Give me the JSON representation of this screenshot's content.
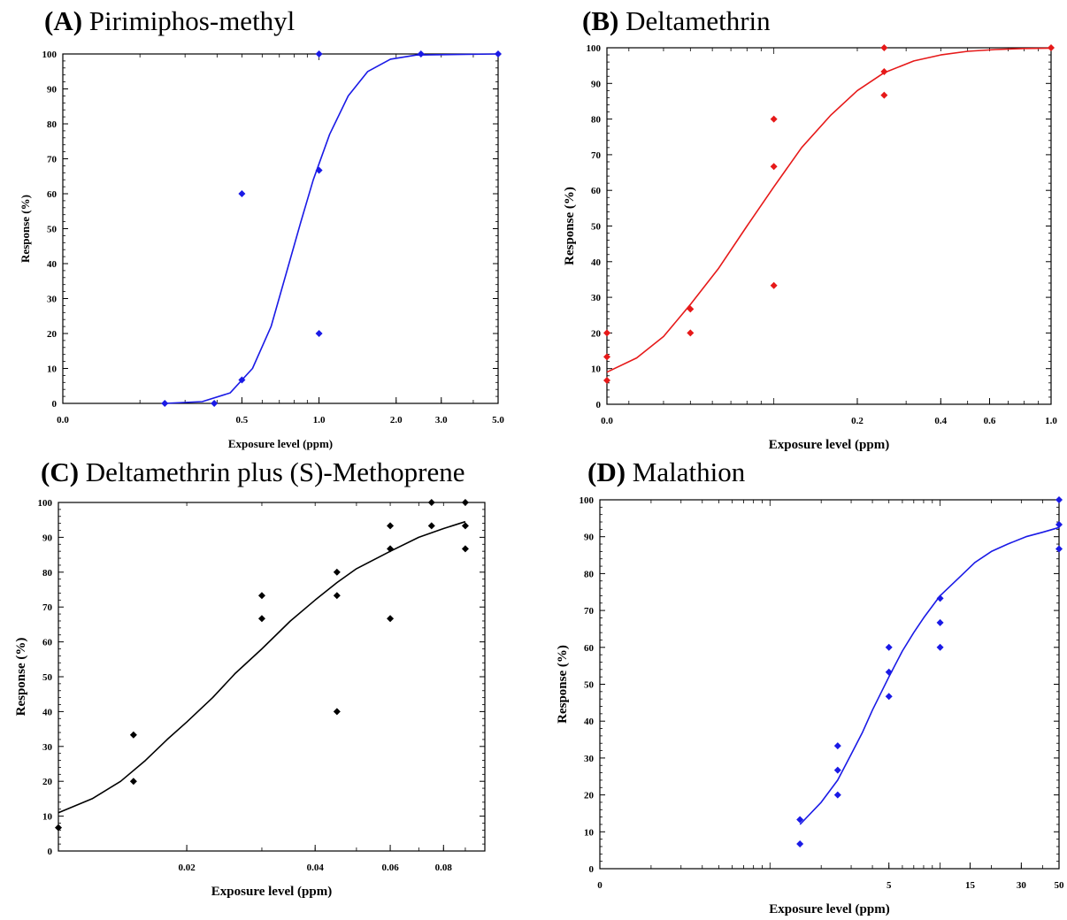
{
  "chart_data": [
    {
      "type": "scatter",
      "panel_letter": "(A)",
      "title": "Pirimiphos-methyl",
      "xlabel": "Exposure level (ppm)",
      "ylabel": "Response (%)",
      "x_scale": "log",
      "xlim": [
        0.1,
        5.0
      ],
      "ylim": [
        0,
        100
      ],
      "y_ticks": [
        0,
        10,
        20,
        30,
        40,
        50,
        60,
        70,
        80,
        90,
        100
      ],
      "x_tick_labels": [
        {
          "value": 0.1,
          "label": "0.0"
        },
        {
          "value": 0.5,
          "label": "0.5"
        },
        {
          "value": 1.0,
          "label": "1.0"
        },
        {
          "value": 2.0,
          "label": "2.0"
        },
        {
          "value": 3.0,
          "label": "3.0"
        },
        {
          "value": 5.0,
          "label": "5.0"
        }
      ],
      "color": "#1a1ae6",
      "points": [
        {
          "x": 0.25,
          "y": 0
        },
        {
          "x": 0.39,
          "y": 0
        },
        {
          "x": 0.5,
          "y": 60
        },
        {
          "x": 0.5,
          "y": 6.7
        },
        {
          "x": 1.0,
          "y": 100
        },
        {
          "x": 1.0,
          "y": 66.7
        },
        {
          "x": 1.0,
          "y": 20
        },
        {
          "x": 2.5,
          "y": 100
        },
        {
          "x": 5.0,
          "y": 100
        }
      ],
      "fit": [
        {
          "x": 0.25,
          "y": 0
        },
        {
          "x": 0.35,
          "y": 0.5
        },
        {
          "x": 0.45,
          "y": 3
        },
        {
          "x": 0.55,
          "y": 10
        },
        {
          "x": 0.65,
          "y": 22
        },
        {
          "x": 0.75,
          "y": 38
        },
        {
          "x": 0.85,
          "y": 52
        },
        {
          "x": 0.95,
          "y": 64
        },
        {
          "x": 1.1,
          "y": 77
        },
        {
          "x": 1.3,
          "y": 88
        },
        {
          "x": 1.55,
          "y": 95
        },
        {
          "x": 1.9,
          "y": 98.5
        },
        {
          "x": 2.4,
          "y": 99.7
        },
        {
          "x": 5.0,
          "y": 100
        }
      ]
    },
    {
      "type": "scatter",
      "panel_letter": "(B)",
      "title": "Deltamethrin",
      "xlabel": "Exposure level (ppm)",
      "ylabel": "Response (%)",
      "x_scale": "log",
      "xlim": [
        0.025,
        1.0
      ],
      "ylim": [
        0,
        100
      ],
      "y_ticks": [
        0,
        10,
        20,
        30,
        40,
        50,
        60,
        70,
        80,
        90,
        100
      ],
      "x_tick_labels": [
        {
          "value": 0.025,
          "label": "0.0"
        },
        {
          "value": 0.2,
          "label": "0.2"
        },
        {
          "value": 0.4,
          "label": "0.4"
        },
        {
          "value": 0.6,
          "label": "0.6"
        },
        {
          "value": 1.0,
          "label": "1.0"
        }
      ],
      "color": "#e61919",
      "points": [
        {
          "x": 0.025,
          "y": 20
        },
        {
          "x": 0.025,
          "y": 13.3
        },
        {
          "x": 0.025,
          "y": 6.7
        },
        {
          "x": 0.05,
          "y": 26.7
        },
        {
          "x": 0.05,
          "y": 20
        },
        {
          "x": 0.1,
          "y": 80
        },
        {
          "x": 0.1,
          "y": 66.7
        },
        {
          "x": 0.1,
          "y": 33.3
        },
        {
          "x": 0.25,
          "y": 100
        },
        {
          "x": 0.25,
          "y": 93.3
        },
        {
          "x": 0.25,
          "y": 86.7
        },
        {
          "x": 1.0,
          "y": 100
        }
      ],
      "fit": [
        {
          "x": 0.025,
          "y": 9
        },
        {
          "x": 0.032,
          "y": 13
        },
        {
          "x": 0.04,
          "y": 19
        },
        {
          "x": 0.05,
          "y": 28
        },
        {
          "x": 0.063,
          "y": 38
        },
        {
          "x": 0.08,
          "y": 50
        },
        {
          "x": 0.1,
          "y": 61
        },
        {
          "x": 0.126,
          "y": 72
        },
        {
          "x": 0.16,
          "y": 81
        },
        {
          "x": 0.2,
          "y": 88
        },
        {
          "x": 0.25,
          "y": 93
        },
        {
          "x": 0.32,
          "y": 96.3
        },
        {
          "x": 0.4,
          "y": 98
        },
        {
          "x": 0.5,
          "y": 99
        },
        {
          "x": 0.63,
          "y": 99.5
        },
        {
          "x": 0.8,
          "y": 99.8
        },
        {
          "x": 1.0,
          "y": 99.9
        }
      ]
    },
    {
      "type": "scatter",
      "panel_letter": "(C)",
      "title": "Deltamethrin plus (S)-Methoprene",
      "xlabel": "Exposure level (ppm)",
      "ylabel": "Response (%)",
      "x_scale": "log",
      "xlim": [
        0.01,
        0.1
      ],
      "ylim": [
        0,
        100
      ],
      "y_ticks": [
        0,
        10,
        20,
        30,
        40,
        50,
        60,
        70,
        80,
        90,
        100
      ],
      "x_tick_labels": [
        {
          "value": 0.02,
          "label": "0.02"
        },
        {
          "value": 0.04,
          "label": "0.04"
        },
        {
          "value": 0.06,
          "label": "0.06"
        },
        {
          "value": 0.08,
          "label": "0.08"
        }
      ],
      "color": "#000000",
      "points": [
        {
          "x": 0.01,
          "y": 6.7
        },
        {
          "x": 0.015,
          "y": 33.3
        },
        {
          "x": 0.015,
          "y": 20
        },
        {
          "x": 0.03,
          "y": 73.3
        },
        {
          "x": 0.03,
          "y": 66.7
        },
        {
          "x": 0.045,
          "y": 80
        },
        {
          "x": 0.045,
          "y": 73.3
        },
        {
          "x": 0.045,
          "y": 40
        },
        {
          "x": 0.06,
          "y": 93.3
        },
        {
          "x": 0.06,
          "y": 86.7
        },
        {
          "x": 0.06,
          "y": 66.7
        },
        {
          "x": 0.075,
          "y": 100
        },
        {
          "x": 0.075,
          "y": 93.3
        },
        {
          "x": 0.09,
          "y": 100
        },
        {
          "x": 0.09,
          "y": 93.3
        },
        {
          "x": 0.09,
          "y": 86.7
        }
      ],
      "fit": [
        {
          "x": 0.01,
          "y": 11
        },
        {
          "x": 0.012,
          "y": 15
        },
        {
          "x": 0.014,
          "y": 20
        },
        {
          "x": 0.016,
          "y": 26
        },
        {
          "x": 0.018,
          "y": 32
        },
        {
          "x": 0.02,
          "y": 37
        },
        {
          "x": 0.023,
          "y": 44
        },
        {
          "x": 0.026,
          "y": 51
        },
        {
          "x": 0.03,
          "y": 58
        },
        {
          "x": 0.035,
          "y": 66
        },
        {
          "x": 0.04,
          "y": 72
        },
        {
          "x": 0.045,
          "y": 77
        },
        {
          "x": 0.05,
          "y": 81
        },
        {
          "x": 0.06,
          "y": 86
        },
        {
          "x": 0.07,
          "y": 90
        },
        {
          "x": 0.08,
          "y": 92.5
        },
        {
          "x": 0.09,
          "y": 94.5
        }
      ]
    },
    {
      "type": "scatter",
      "panel_letter": "(D)",
      "title": "Malathion",
      "xlabel": "Exposure level (ppm)",
      "ylabel": "Response (%)",
      "x_scale": "log",
      "xlim": [
        0.1,
        50
      ],
      "ylim": [
        0,
        100
      ],
      "y_ticks": [
        0,
        10,
        20,
        30,
        40,
        50,
        60,
        70,
        80,
        90,
        100
      ],
      "x_tick_labels": [
        {
          "value": 0.1,
          "label": "0"
        },
        {
          "value": 5,
          "label": "5"
        },
        {
          "value": 15,
          "label": "15"
        },
        {
          "value": 30,
          "label": "30"
        },
        {
          "value": 50,
          "label": "50"
        }
      ],
      "color": "#1a1ae6",
      "points": [
        {
          "x": 1.5,
          "y": 13.3
        },
        {
          "x": 1.5,
          "y": 6.7
        },
        {
          "x": 2.5,
          "y": 33.3
        },
        {
          "x": 2.5,
          "y": 26.7
        },
        {
          "x": 2.5,
          "y": 20
        },
        {
          "x": 5,
          "y": 60
        },
        {
          "x": 5,
          "y": 53.3
        },
        {
          "x": 5,
          "y": 46.7
        },
        {
          "x": 10,
          "y": 73.3
        },
        {
          "x": 10,
          "y": 66.7
        },
        {
          "x": 10,
          "y": 60
        },
        {
          "x": 50,
          "y": 100
        },
        {
          "x": 50,
          "y": 93.3
        },
        {
          "x": 50,
          "y": 86.7
        }
      ],
      "fit": [
        {
          "x": 1.5,
          "y": 12
        },
        {
          "x": 2,
          "y": 18
        },
        {
          "x": 2.5,
          "y": 24
        },
        {
          "x": 3,
          "y": 31
        },
        {
          "x": 3.5,
          "y": 37
        },
        {
          "x": 4,
          "y": 43
        },
        {
          "x": 5,
          "y": 52
        },
        {
          "x": 6,
          "y": 59
        },
        {
          "x": 7,
          "y": 64
        },
        {
          "x": 8,
          "y": 68
        },
        {
          "x": 10,
          "y": 74
        },
        {
          "x": 13,
          "y": 79
        },
        {
          "x": 16,
          "y": 83
        },
        {
          "x": 20,
          "y": 86
        },
        {
          "x": 25,
          "y": 88
        },
        {
          "x": 32,
          "y": 90
        },
        {
          "x": 40,
          "y": 91.2
        },
        {
          "x": 50,
          "y": 92.5
        }
      ]
    }
  ]
}
